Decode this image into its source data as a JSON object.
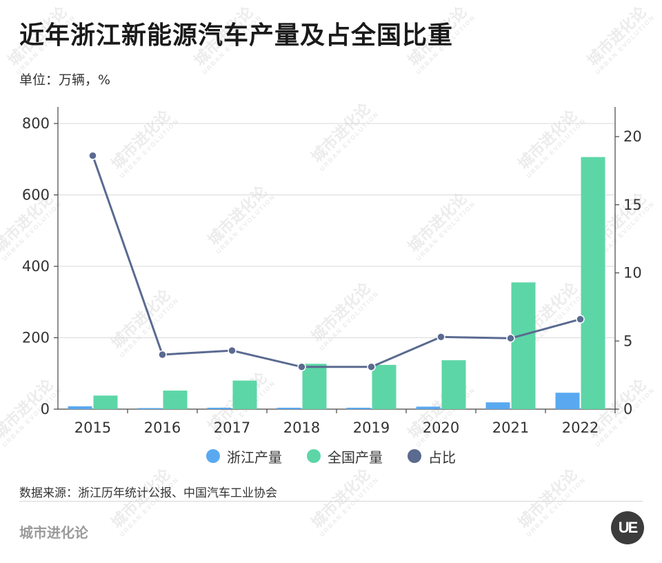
{
  "title": "近年浙江新能源汽车产量及占全国比重",
  "unit_label": "单位：万辆，%",
  "source": "数据来源：浙江历年统计公报、中国汽车工业协会",
  "brand": "城市进化论",
  "logo_text": "UE",
  "watermark": {
    "text": "城市进化论",
    "subtext": "URBAN EVOLUTION"
  },
  "legend": [
    {
      "label": "浙江产量",
      "color": "#5aa9f0"
    },
    {
      "label": "全国产量",
      "color": "#5dd6a7"
    },
    {
      "label": "占比",
      "color": "#5a6a90"
    }
  ],
  "chart_data": {
    "type": "bar",
    "categories": [
      "2015",
      "2016",
      "2017",
      "2018",
      "2019",
      "2020",
      "2021",
      "2022"
    ],
    "series": [
      {
        "name": "浙江产量",
        "type": "bar",
        "axis": "left",
        "color": "#5aa9f0",
        "values": [
          8,
          3,
          4,
          4,
          4,
          7,
          19,
          46
        ]
      },
      {
        "name": "全国产量",
        "type": "bar",
        "axis": "left",
        "color": "#5dd6a7",
        "values": [
          38,
          52,
          80,
          127,
          124,
          137,
          355,
          706
        ]
      },
      {
        "name": "占比",
        "type": "line",
        "axis": "right",
        "color": "#5a6a90",
        "values": [
          18.6,
          4.0,
          4.3,
          3.1,
          3.1,
          5.3,
          5.2,
          6.6
        ]
      }
    ],
    "y_left": {
      "ylim": [
        0,
        800
      ],
      "ticks": [
        "0",
        "200",
        "400",
        "600",
        "800"
      ]
    },
    "y_right": {
      "ylim": [
        0,
        20
      ],
      "ticks": [
        "0",
        "5",
        "10",
        "15",
        "20"
      ]
    },
    "grid": true,
    "legend_position": "bottom"
  }
}
